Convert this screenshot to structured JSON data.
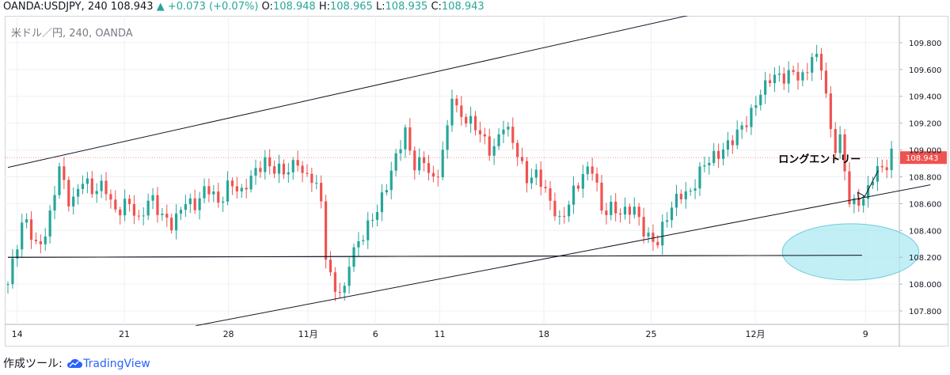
{
  "header": {
    "symbol": "OANDA:USDJPY, 240",
    "last": "108.943",
    "up_arrow": "▲",
    "change": "+0.073 (+0.07%)",
    "o_label": "O:",
    "o": "108.948",
    "h_label": "H:",
    "h": "108.965",
    "l_label": "L:",
    "l": "108.935",
    "c_label": "C:",
    "c": "108.943"
  },
  "symbol_title": "米ドル／円, 240, OANDA",
  "footer": {
    "prefix": "作成ツール:",
    "brand": "TradingView",
    "icon": "cloud-icon"
  },
  "colors": {
    "up": "#26a69a",
    "down": "#ef5350",
    "price_tag": "#ef5350",
    "ellipse_fill": "#aee9f2",
    "ellipse_stroke": "#6fcbdc"
  },
  "chart_data": {
    "type": "candlestick",
    "title": "米ドル／円, 240, OANDA",
    "ylim": [
      107.7,
      110.0
    ],
    "y_ticks": [
      "109.800",
      "109.600",
      "109.400",
      "109.200",
      "109.000",
      "108.800",
      "108.600",
      "108.400",
      "108.200",
      "108.000",
      "107.800"
    ],
    "x_ticks": [
      "14",
      "21",
      "28",
      "11月",
      "6",
      "11",
      "18",
      "25",
      "12月",
      "9"
    ],
    "current_price": "108.943",
    "annotation": "ロングエントリー",
    "trendlines": [
      {
        "name": "upper-channel",
        "from": [
          0,
          108.87
        ],
        "to": [
          135,
          110.15
        ]
      },
      {
        "name": "lower-channel",
        "from": [
          33,
          107.69
        ],
        "to": [
          162,
          108.74
        ]
      },
      {
        "name": "horizontal-support",
        "from": [
          0,
          108.2
        ],
        "to": [
          150,
          108.215
        ]
      }
    ],
    "highlight_zone": {
      "center": [
        148,
        108.24
      ],
      "x_half": 12,
      "y_half": 0.21
    },
    "close_path": [
      [
        0,
        108.0
      ],
      [
        3,
        108.5
      ],
      [
        5,
        108.3
      ],
      [
        7,
        108.4
      ],
      [
        9,
        108.85
      ],
      [
        11,
        108.6
      ],
      [
        13,
        108.8
      ],
      [
        15,
        108.65
      ],
      [
        17,
        108.75
      ],
      [
        19,
        108.55
      ],
      [
        21,
        108.6
      ],
      [
        23,
        108.45
      ],
      [
        25,
        108.7
      ],
      [
        27,
        108.5
      ],
      [
        29,
        108.4
      ],
      [
        31,
        108.65
      ],
      [
        33,
        108.6
      ],
      [
        35,
        108.7
      ],
      [
        37,
        108.6
      ],
      [
        39,
        108.8
      ],
      [
        41,
        108.65
      ],
      [
        43,
        108.8
      ],
      [
        45,
        108.95
      ],
      [
        47,
        108.85
      ],
      [
        49,
        108.8
      ],
      [
        51,
        108.95
      ],
      [
        52,
        108.8
      ],
      [
        53,
        108.85
      ],
      [
        55,
        108.6
      ],
      [
        56,
        108.1
      ],
      [
        57,
        108.0
      ],
      [
        59,
        107.95
      ],
      [
        60,
        108.2
      ],
      [
        62,
        108.3
      ],
      [
        64,
        108.5
      ],
      [
        66,
        108.7
      ],
      [
        68,
        108.9
      ],
      [
        70,
        109.15
      ],
      [
        71,
        108.9
      ],
      [
        73,
        108.95
      ],
      [
        75,
        108.7
      ],
      [
        77,
        109.1
      ],
      [
        78,
        109.45
      ],
      [
        79,
        109.3
      ],
      [
        81,
        109.2
      ],
      [
        83,
        109.1
      ],
      [
        85,
        109.0
      ],
      [
        87,
        109.2
      ],
      [
        89,
        109.0
      ],
      [
        91,
        108.8
      ],
      [
        93,
        108.85
      ],
      [
        95,
        108.6
      ],
      [
        97,
        108.45
      ],
      [
        99,
        108.7
      ],
      [
        101,
        108.8
      ],
      [
        103,
        108.85
      ],
      [
        104,
        108.55
      ],
      [
        106,
        108.6
      ],
      [
        108,
        108.5
      ],
      [
        110,
        108.55
      ],
      [
        112,
        108.4
      ],
      [
        114,
        108.3
      ],
      [
        116,
        108.5
      ],
      [
        118,
        108.7
      ],
      [
        120,
        108.7
      ],
      [
        122,
        108.85
      ],
      [
        124,
        108.95
      ],
      [
        126,
        109.05
      ],
      [
        128,
        109.1
      ],
      [
        130,
        109.2
      ],
      [
        132,
        109.45
      ],
      [
        134,
        109.55
      ],
      [
        136,
        109.5
      ],
      [
        138,
        109.6
      ],
      [
        140,
        109.55
      ],
      [
        141,
        109.7
      ],
      [
        143,
        109.6
      ],
      [
        144,
        109.3
      ],
      [
        145,
        109.0
      ],
      [
        146,
        109.15
      ],
      [
        147,
        108.85
      ],
      [
        148,
        108.55
      ],
      [
        149,
        108.58
      ],
      [
        150,
        108.6
      ],
      [
        151,
        108.7
      ],
      [
        152,
        108.85
      ],
      [
        153,
        108.9
      ],
      [
        154,
        108.85
      ],
      [
        155,
        108.943
      ]
    ]
  }
}
